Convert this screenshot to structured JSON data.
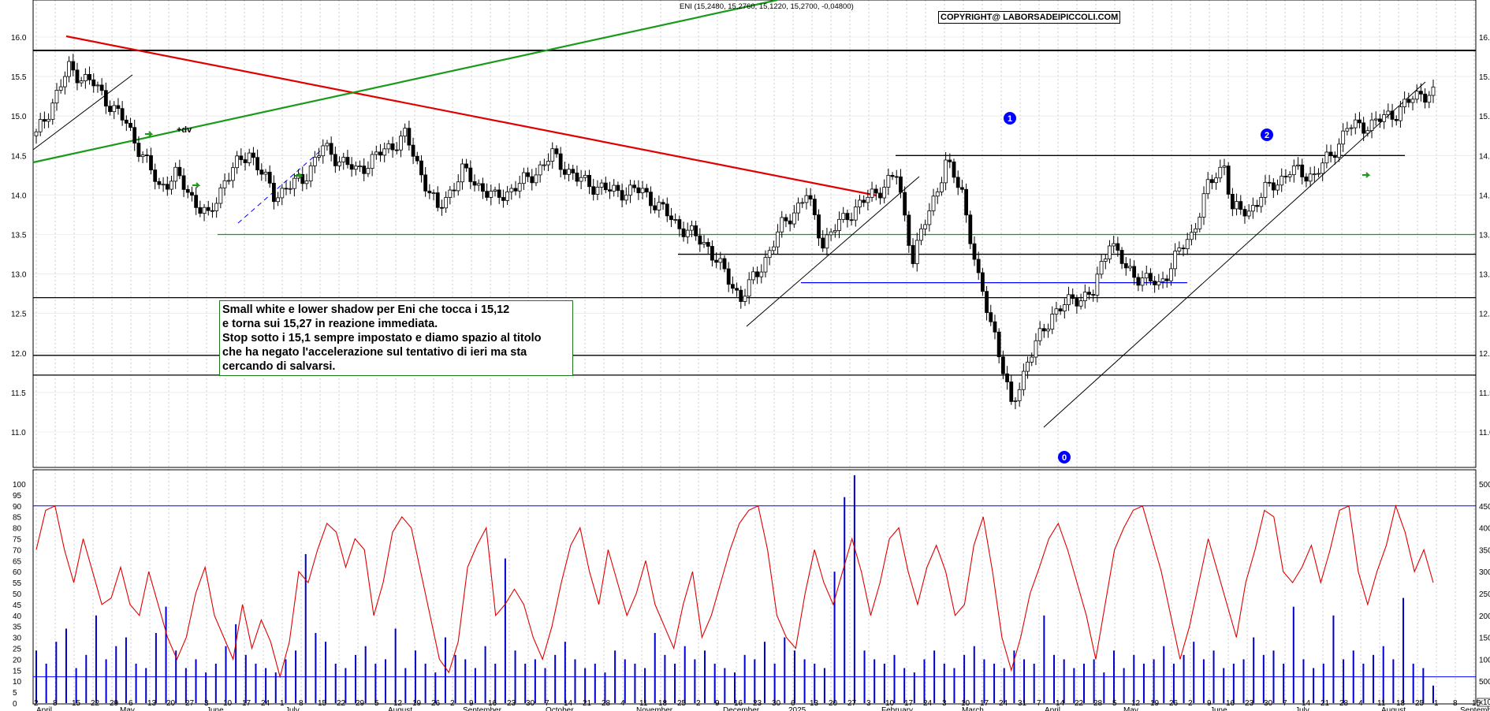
{
  "indicator_title": "ENI (15,2480, 15,2760, 15,1220, 15,2700, -0,04800)",
  "copyright": "COPYRIGHT@ LABORSADEIPICCOLI.COM",
  "annotation_lines": [
    "Small white e lower shadow per Eni che tocca i 15,12",
    "e torna sui 15,27 in reazione immediata.",
    "Stop sotto i 15,1 sempre impostato e diamo spazio al titolo",
    "che ha negato l'accelerazione sul tentativo di ieri ma sta",
    "cercando di salvarsi."
  ],
  "wave_labels": [
    "1",
    "2",
    "0"
  ],
  "dv_label": "+dv",
  "colors": {
    "price_up": "#ffffff",
    "price_down": "#000000",
    "red_line": "#e00000",
    "green_line": "#1a9a1a",
    "blue": "#0000ff",
    "oscillator": "#e00000",
    "volume": "#0000cc",
    "grid": "#c0c0c0"
  },
  "chart_data": {
    "type": "candlestick",
    "title": "ENI (15,2480, 15,2760, 15,1220, 15,2700, -0,04800)",
    "last_bar": {
      "open": 15.248,
      "high": 15.276,
      "low": 15.122,
      "close": 15.27,
      "change": -0.048
    },
    "price_axis": {
      "ticks": [
        "16.0",
        "15.5",
        "15.0",
        "14.5",
        "14.0",
        "13.5",
        "13.0",
        "12.5",
        "12.0",
        "11.5",
        "11.0"
      ],
      "range": [
        10.75,
        16.15
      ]
    },
    "oscillator_axis": {
      "ticks": [
        "100",
        "95",
        "90",
        "85",
        "80",
        "75",
        "70",
        "65",
        "60",
        "55",
        "50",
        "45",
        "40",
        "35",
        "30",
        "25",
        "20",
        "15",
        "10",
        "5",
        "0"
      ],
      "range": [
        0,
        100
      ]
    },
    "volume_axis": {
      "ticks": [
        "50000",
        "45000",
        "40000",
        "35000",
        "30000",
        "25000",
        "20000",
        "15000",
        "10000",
        "5000",
        "0"
      ],
      "range": [
        0,
        50000
      ],
      "unit": "x1000"
    },
    "date_labels": [
      "2",
      "8",
      "15",
      "22",
      "29",
      "6",
      "13",
      "20",
      "27",
      "3",
      "10",
      "17",
      "24",
      "1",
      "8",
      "15",
      "22",
      "29",
      "5",
      "12",
      "19",
      "26",
      "2",
      "9",
      "16",
      "23",
      "30",
      "7",
      "14",
      "21",
      "28",
      "4",
      "11",
      "18",
      "25",
      "2",
      "9",
      "16",
      "23",
      "30",
      "6",
      "13",
      "20",
      "27",
      "3",
      "10",
      "17",
      "24",
      "3",
      "10",
      "17",
      "24",
      "31",
      "7",
      "14",
      "22",
      "28",
      "5",
      "12",
      "19",
      "26",
      "2",
      "9",
      "16",
      "23",
      "30",
      "7",
      "14",
      "21",
      "28",
      "4",
      "11",
      "18",
      "25",
      "1",
      "8",
      "15"
    ],
    "month_labels": [
      "April",
      "May",
      "June",
      "July",
      "August",
      "September",
      "October",
      "November",
      "December",
      "2025",
      "February",
      "March",
      "April",
      "May",
      "June",
      "July",
      "August",
      "September"
    ],
    "horizontal_levels": [
      {
        "price": 15.83,
        "color": "black"
      },
      {
        "price": 14.5,
        "color": "black"
      },
      {
        "price": 13.5,
        "color": "green"
      },
      {
        "price": 13.25,
        "color": "black"
      },
      {
        "price": 12.89,
        "color": "blue"
      },
      {
        "price": 12.7,
        "color": "black"
      },
      {
        "price": 11.97,
        "color": "black"
      },
      {
        "price": 11.72,
        "color": "black"
      }
    ],
    "oscillator_levels": [
      90,
      12
    ],
    "price_path": [
      [
        0,
        14.75
      ],
      [
        8,
        15.6
      ],
      [
        14,
        15.4
      ],
      [
        22,
        14.9
      ],
      [
        26,
        14.5
      ],
      [
        30,
        14.1
      ],
      [
        34,
        14.25
      ],
      [
        42,
        13.7
      ],
      [
        46,
        14.2
      ],
      [
        52,
        14.55
      ],
      [
        58,
        14.0
      ],
      [
        65,
        14.2
      ],
      [
        70,
        14.6
      ],
      [
        78,
        14.3
      ],
      [
        90,
        14.75
      ],
      [
        98,
        13.8
      ],
      [
        104,
        14.3
      ],
      [
        112,
        13.95
      ],
      [
        120,
        14.2
      ],
      [
        126,
        14.5
      ],
      [
        132,
        14.2
      ],
      [
        140,
        14.05
      ],
      [
        148,
        14.05
      ],
      [
        156,
        13.65
      ],
      [
        164,
        13.35
      ],
      [
        168,
        13.0
      ],
      [
        172,
        12.7
      ],
      [
        176,
        13.0
      ],
      [
        182,
        13.6
      ],
      [
        188,
        14.0
      ],
      [
        192,
        13.4
      ],
      [
        198,
        13.75
      ],
      [
        204,
        14.0
      ],
      [
        210,
        14.25
      ],
      [
        214,
        13.2
      ],
      [
        218,
        13.8
      ],
      [
        222,
        14.4
      ],
      [
        226,
        14.05
      ],
      [
        230,
        12.9
      ],
      [
        234,
        12.25
      ],
      [
        238,
        11.3
      ],
      [
        242,
        11.9
      ],
      [
        248,
        12.5
      ],
      [
        254,
        12.7
      ],
      [
        258,
        12.75
      ],
      [
        262,
        13.45
      ],
      [
        266,
        13.05
      ],
      [
        270,
        12.95
      ],
      [
        274,
        12.85
      ],
      [
        278,
        13.2
      ],
      [
        282,
        13.5
      ],
      [
        286,
        14.1
      ],
      [
        290,
        14.4
      ],
      [
        292,
        13.8
      ],
      [
        296,
        13.8
      ],
      [
        300,
        14.05
      ],
      [
        306,
        14.3
      ],
      [
        312,
        14.25
      ],
      [
        316,
        14.5
      ],
      [
        320,
        14.85
      ],
      [
        326,
        14.9
      ],
      [
        332,
        15.05
      ],
      [
        338,
        15.3
      ],
      [
        341,
        15.27
      ]
    ],
    "volume_series": [
      12000,
      9000,
      14000,
      17000,
      8000,
      11000,
      20000,
      10000,
      13000,
      15000,
      9000,
      8000,
      16000,
      22000,
      12000,
      8000,
      10000,
      7000,
      9000,
      13000,
      18000,
      11000,
      9000,
      8000,
      7000,
      10000,
      12000,
      34000,
      16000,
      14000,
      9000,
      8000,
      11000,
      13000,
      9000,
      10000,
      17000,
      8000,
      12000,
      9000,
      7000,
      15000,
      11000,
      10000,
      8000,
      13000,
      9000,
      33000,
      12000,
      9000,
      10000,
      8000,
      11000,
      14000,
      10000,
      8000,
      9000,
      7000,
      12000,
      10000,
      9000,
      8000,
      16000,
      11000,
      9000,
      13000,
      10000,
      12000,
      9000,
      8000,
      7000,
      11000,
      10000,
      14000,
      9000,
      15000,
      12000,
      10000,
      9000,
      8000,
      30000,
      47000,
      52000,
      12000,
      10000,
      9000,
      11000,
      8000,
      7000,
      10000,
      12000,
      9000,
      8000,
      11000,
      13000,
      10000,
      9000,
      8000,
      12000,
      10000,
      9000,
      20000,
      11000,
      10000,
      8000,
      9000,
      10000,
      7000,
      12000,
      8000,
      11000,
      9000,
      10000,
      13000,
      9000,
      11000,
      14000,
      10000,
      12000,
      8000,
      9000,
      10000,
      15000,
      11000,
      12000,
      9000,
      22000,
      10000,
      8000,
      9000,
      20000,
      10000,
      12000,
      9000,
      11000,
      13000,
      10000,
      24000,
      9000,
      8000,
      4000
    ],
    "oscillator_series": [
      70,
      88,
      90,
      70,
      55,
      75,
      60,
      45,
      48,
      62,
      45,
      40,
      60,
      45,
      30,
      20,
      30,
      50,
      62,
      40,
      30,
      20,
      45,
      25,
      38,
      28,
      12,
      28,
      60,
      55,
      70,
      82,
      78,
      62,
      75,
      70,
      40,
      55,
      78,
      85,
      80,
      60,
      40,
      20,
      14,
      28,
      62,
      72,
      80,
      40,
      45,
      52,
      45,
      30,
      20,
      35,
      55,
      72,
      80,
      60,
      45,
      70,
      55,
      40,
      50,
      65,
      45,
      35,
      25,
      45,
      60,
      30,
      40,
      55,
      70,
      82,
      88,
      90,
      70,
      40,
      30,
      25,
      50,
      70,
      55,
      45,
      60,
      75,
      60,
      40,
      55,
      75,
      80,
      60,
      45,
      62,
      72,
      60,
      40,
      45,
      72,
      85,
      60,
      30,
      15,
      30,
      50,
      62,
      75,
      82,
      70,
      55,
      40,
      20,
      45,
      70,
      80,
      88,
      90,
      75,
      60,
      40,
      20,
      35,
      55,
      75,
      60,
      45,
      30,
      55,
      70,
      88,
      85,
      60,
      55,
      62,
      72,
      55,
      70,
      88,
      90,
      60,
      45,
      60,
      72,
      90,
      78,
      60,
      70,
      55
    ]
  }
}
